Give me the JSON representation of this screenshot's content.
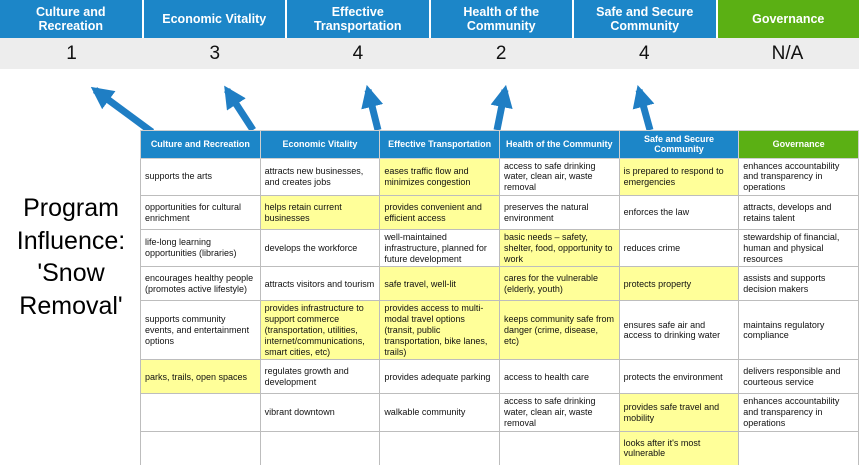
{
  "colors": {
    "blue": "#1c86c8",
    "green": "#5bb014",
    "arrow": "#1f7ec4",
    "highlight": "#ffff99",
    "score_band": "#ededed"
  },
  "program_label": "Program Influence: 'Snow Removal'",
  "banner": {
    "columns": [
      {
        "label": "Culture and Recreation",
        "score": "1",
        "bg": "#1c86c8"
      },
      {
        "label": "Economic Vitality",
        "score": "3",
        "bg": "#1c86c8"
      },
      {
        "label": "Effective Transportation",
        "score": "4",
        "bg": "#1c86c8"
      },
      {
        "label": "Health of the Community",
        "score": "2",
        "bg": "#1c86c8"
      },
      {
        "label": "Safe and Secure Community",
        "score": "4",
        "bg": "#1c86c8"
      },
      {
        "label": "Governance",
        "score": "N/A",
        "bg": "#5bb014"
      }
    ]
  },
  "matrix": {
    "headers": [
      {
        "label": "Culture and Recreation",
        "bg": "#1c86c8"
      },
      {
        "label": "Economic Vitality",
        "bg": "#1c86c8"
      },
      {
        "label": "Effective Transportation",
        "bg": "#1c86c8"
      },
      {
        "label": "Health of the Community",
        "bg": "#1c86c8"
      },
      {
        "label": "Safe and Secure Community",
        "bg": "#1c86c8"
      },
      {
        "label": "Governance",
        "bg": "#5bb014"
      }
    ],
    "rows": [
      [
        {
          "text": "supports the arts",
          "highlight": false
        },
        {
          "text": "attracts new businesses, and creates jobs",
          "highlight": false
        },
        {
          "text": "eases traffic flow and minimizes congestion",
          "highlight": true
        },
        {
          "text": "access to safe drinking water, clean air, waste removal",
          "highlight": false
        },
        {
          "text": "is prepared to respond to emergencies",
          "highlight": true
        },
        {
          "text": "enhances accountability and transparency in operations",
          "highlight": false
        }
      ],
      [
        {
          "text": "opportunities for cultural enrichment",
          "highlight": false
        },
        {
          "text": "helps retain current businesses",
          "highlight": true
        },
        {
          "text": "provides convenient and efficient access",
          "highlight": true
        },
        {
          "text": "preserves the natural environment",
          "highlight": false
        },
        {
          "text": "enforces the law",
          "highlight": false
        },
        {
          "text": "attracts, develops and retains talent",
          "highlight": false
        }
      ],
      [
        {
          "text": "life-long learning opportunities (libraries)",
          "highlight": false
        },
        {
          "text": "develops the workforce",
          "highlight": false
        },
        {
          "text": "well-maintained infrastructure, planned for future development",
          "highlight": false
        },
        {
          "text": "basic needs – safety, shelter, food, opportunity to work",
          "highlight": true
        },
        {
          "text": "reduces crime",
          "highlight": false
        },
        {
          "text": "stewardship of financial, human and physical resources",
          "highlight": false
        }
      ],
      [
        {
          "text": "encourages healthy people (promotes active lifestyle)",
          "highlight": false
        },
        {
          "text": "attracts visitors and tourism",
          "highlight": false
        },
        {
          "text": "safe travel, well-lit",
          "highlight": true
        },
        {
          "text": "cares for the vulnerable (elderly, youth)",
          "highlight": true
        },
        {
          "text": "protects property",
          "highlight": true
        },
        {
          "text": "assists and supports decision makers",
          "highlight": false
        }
      ],
      [
        {
          "text": "supports community events, and entertainment options",
          "highlight": false
        },
        {
          "text": "provides infrastructure to support commerce (transportation, utilities, internet/communications, smart cities, etc)",
          "highlight": true
        },
        {
          "text": "provides access to multi-modal travel options (transit, public transportation, bike lanes, trails)",
          "highlight": true
        },
        {
          "text": "keeps community safe from danger (crime, disease, etc)",
          "highlight": true
        },
        {
          "text": "ensures safe air and access to drinking water",
          "highlight": false
        },
        {
          "text": "maintains regulatory compliance",
          "highlight": false
        }
      ],
      [
        {
          "text": "parks, trails, open spaces",
          "highlight": true
        },
        {
          "text": "regulates growth and development",
          "highlight": false
        },
        {
          "text": "provides adequate parking",
          "highlight": false
        },
        {
          "text": "access to health care",
          "highlight": false
        },
        {
          "text": "protects the environment",
          "highlight": false
        },
        {
          "text": "delivers responsible and courteous service",
          "highlight": false
        }
      ],
      [
        {
          "text": "",
          "highlight": false
        },
        {
          "text": "vibrant downtown",
          "highlight": false
        },
        {
          "text": "walkable community",
          "highlight": false
        },
        {
          "text": "access to safe drinking water, clean air, waste removal",
          "highlight": false
        },
        {
          "text": "provides safe travel and mobility",
          "highlight": true
        },
        {
          "text": "enhances accountability and transparency in operations",
          "highlight": false
        }
      ],
      [
        {
          "text": "",
          "highlight": false
        },
        {
          "text": "",
          "highlight": false
        },
        {
          "text": "",
          "highlight": false
        },
        {
          "text": "",
          "highlight": false
        },
        {
          "text": "looks after it's most vulnerable",
          "highlight": true
        },
        {
          "text": "",
          "highlight": false
        }
      ]
    ]
  }
}
